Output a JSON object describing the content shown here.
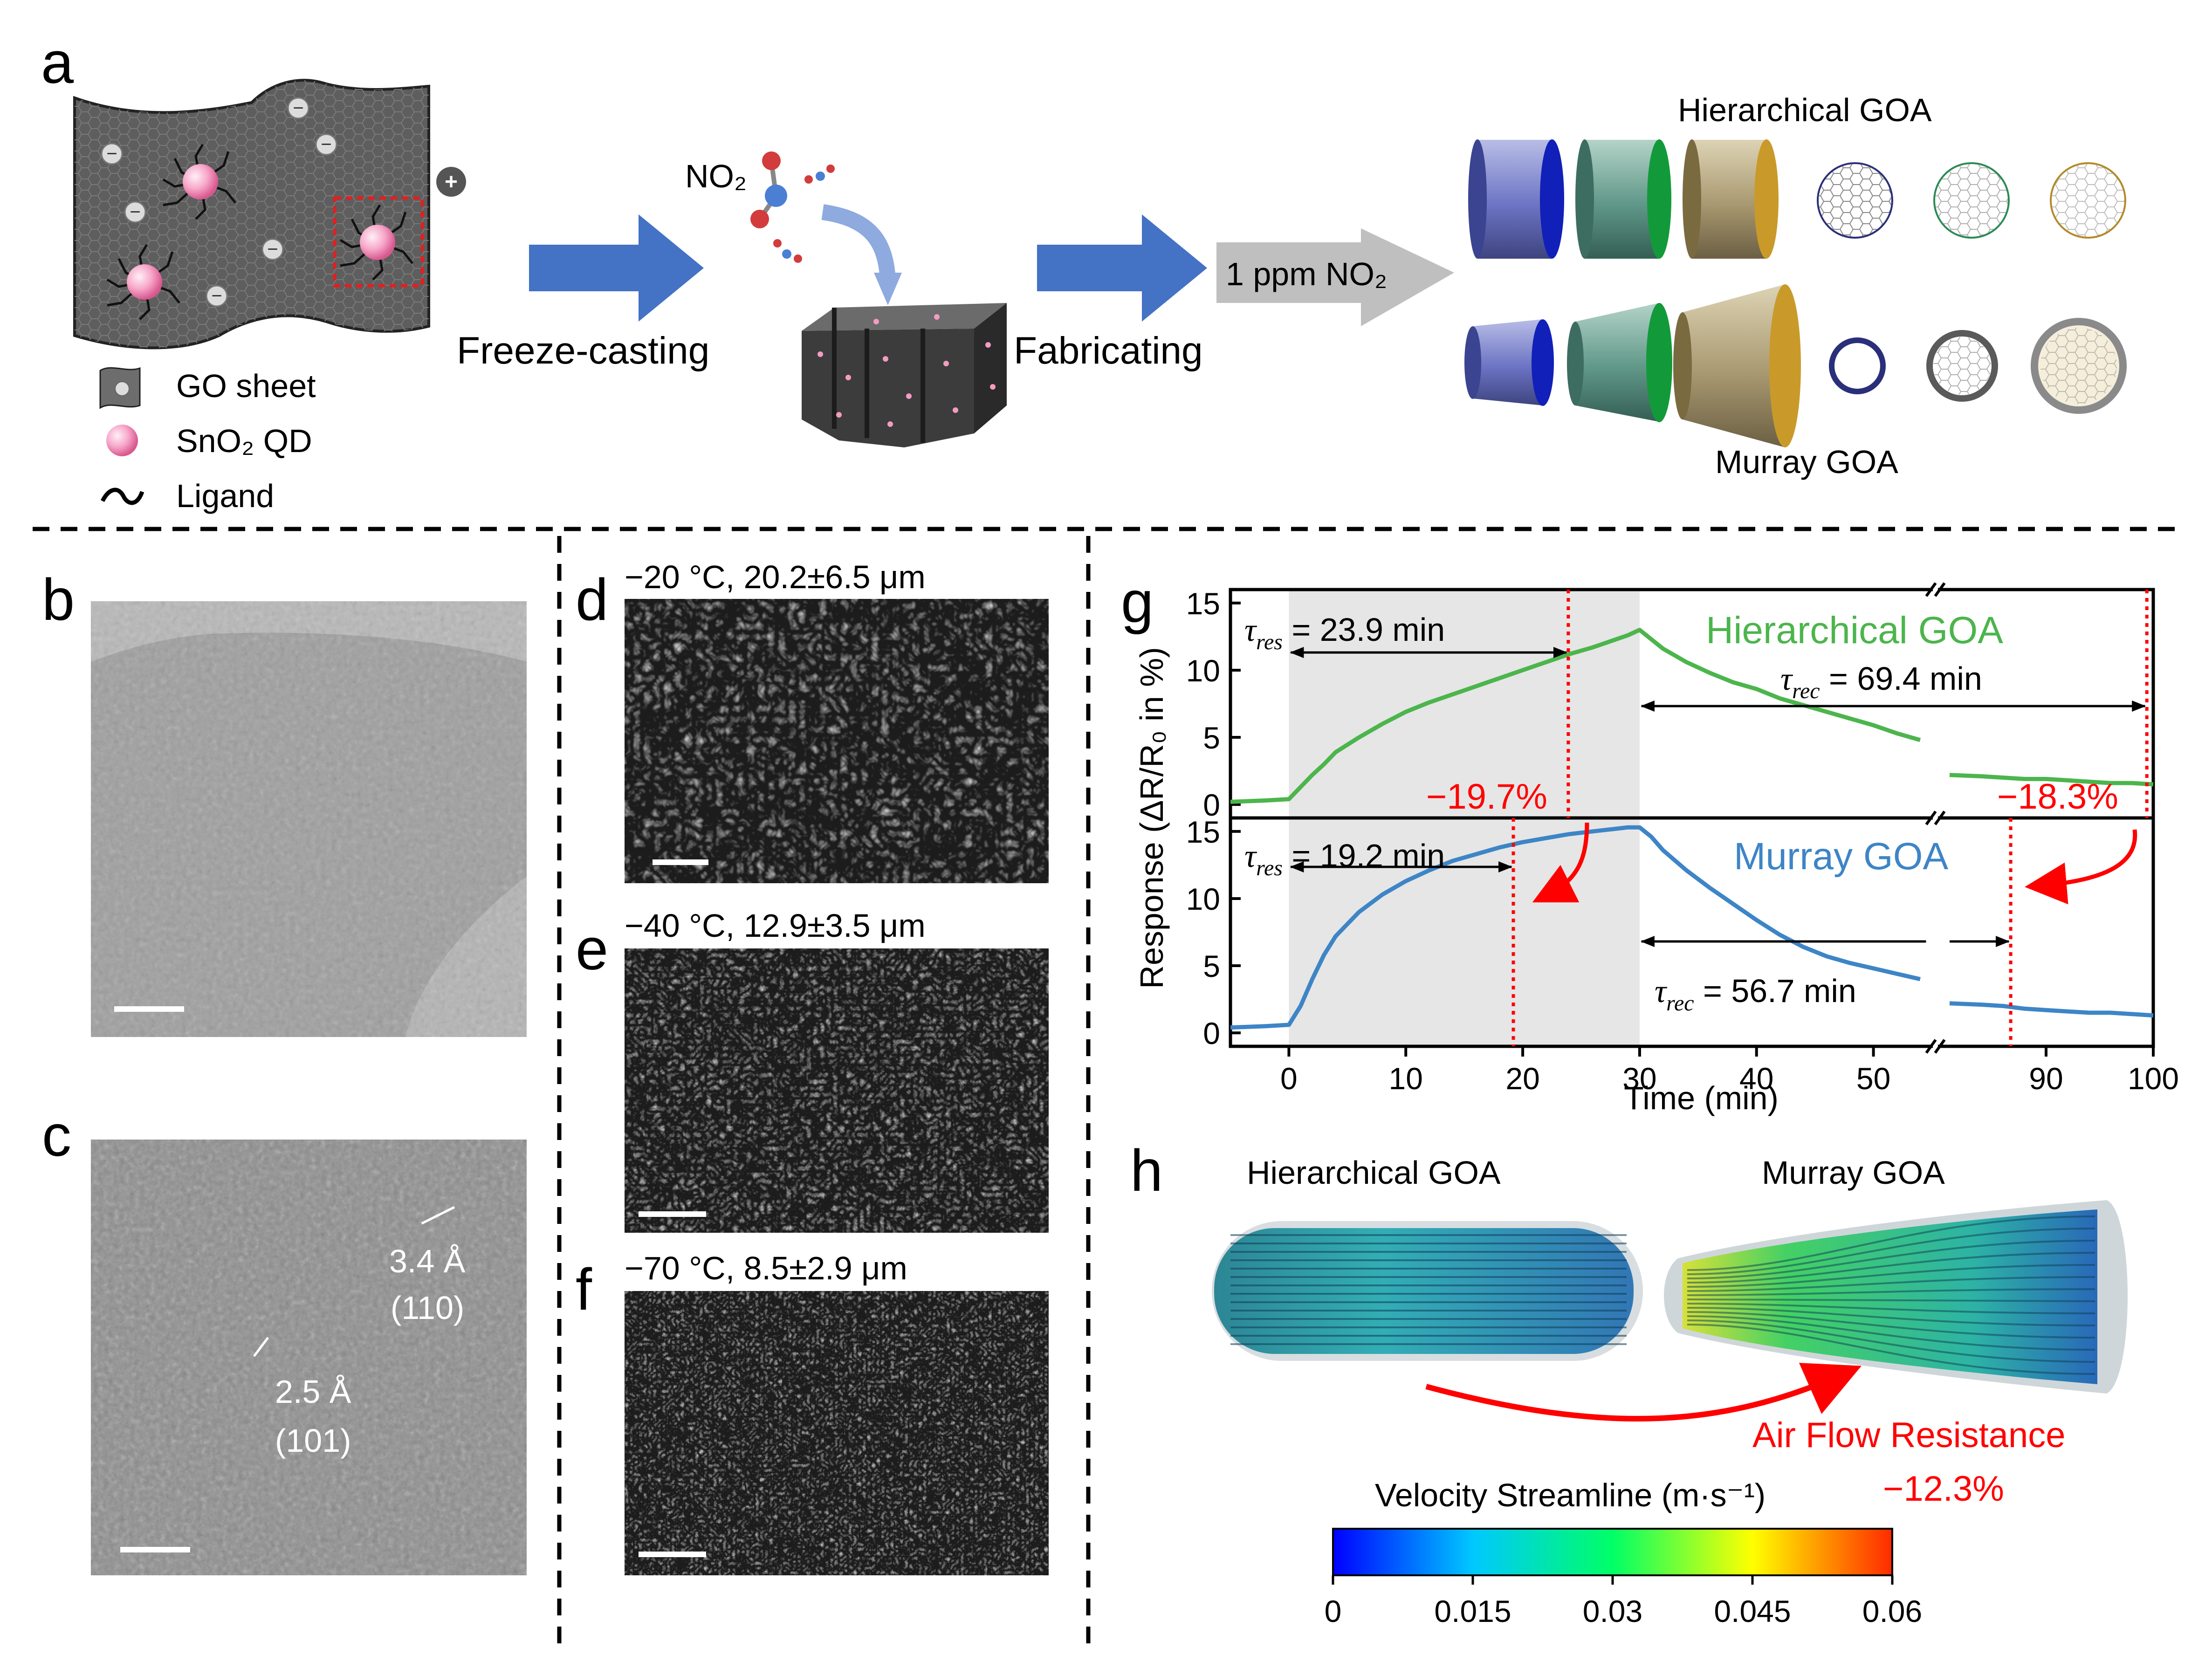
{
  "colors": {
    "hierarchical": "#4cb54c",
    "murray": "#3d85c6",
    "annotation_red": "#ff0000",
    "arrow_blue": "#3d6ec4",
    "qd_pink": "#f5a6c8"
  },
  "panel_a": {
    "letter": "a",
    "legend": {
      "go_sheet": "GO sheet",
      "sno2_qd": "SnO₂ QD",
      "ligand": "Ligand"
    },
    "step1": "Freeze-casting",
    "step2": "Fabricating",
    "no2": "NO₂",
    "gas": "1 ppm NO₂",
    "hier_title": "Hierarchical GOA",
    "murray_title": "Murray GOA"
  },
  "panel_b": {
    "letter": "b"
  },
  "panel_c": {
    "letter": "c",
    "spacing1": "3.4 Å",
    "plane1": "(110)",
    "spacing2": "2.5 Å",
    "plane2": "(101)"
  },
  "panel_d": {
    "letter": "d",
    "caption": "−20 °C, 20.2±6.5 μm"
  },
  "panel_e": {
    "letter": "e",
    "caption": "−40 °C, 12.9±3.5 μm"
  },
  "panel_f": {
    "letter": "f",
    "caption": "−70 °C, 8.5±2.9 μm"
  },
  "panel_g": {
    "letter": "g",
    "hier_title": "Hierarchical GOA",
    "murray_title": "Murray GOA",
    "tau_res_hier": "= 23.9 min",
    "tau_rec_hier": "= 69.4 min",
    "tau_res_murray": "= 19.2 min",
    "tau_rec_murray": "= 56.7 min",
    "tau_res_sub": "res",
    "tau_rec_sub": "rec",
    "pct_hier_left": "−19.7%",
    "pct_hier_right": "−18.3%"
  },
  "panel_h": {
    "letter": "h",
    "hier_title": "Hierarchical GOA",
    "murray_title": "Murray GOA",
    "resistance": "Air Flow Resistance",
    "resistance_pct": "−12.3%",
    "colorbar_title": "Velocity Streamline (m·s⁻¹)",
    "colorbar_ticks": [
      "0",
      "0.015",
      "0.03",
      "0.045",
      "0.06"
    ]
  },
  "chart_data": {
    "type": "line",
    "xlabel": "Time (min)",
    "ylabel": "Response (ΔR/R₀ in %)",
    "x_ticks": [
      0,
      10,
      20,
      30,
      40,
      50,
      90,
      100
    ],
    "y_ticks": [
      0,
      5,
      10,
      15
    ],
    "xlim": [
      -5,
      100
    ],
    "axis_break": [
      55,
      80
    ],
    "ylim": [
      -1,
      16
    ],
    "shaded_region": [
      0,
      30
    ],
    "grid": false,
    "panels": [
      {
        "name": "Hierarchical GOA",
        "color": "#4cb54c",
        "tau_res_min": 23.9,
        "tau_rec_min": 69.4,
        "x": [
          -5,
          -2,
          0,
          1,
          2,
          3,
          4,
          6,
          8,
          10,
          12,
          15,
          18,
          20,
          22,
          24,
          26,
          28,
          29,
          30,
          31,
          32,
          34,
          36,
          38,
          40,
          42,
          44,
          46,
          48,
          50,
          52,
          54,
          81,
          84,
          86,
          88,
          90,
          92,
          94,
          96,
          98,
          100
        ],
        "y": [
          0.2,
          0.3,
          0.4,
          1.3,
          2.2,
          3.0,
          3.9,
          5.0,
          6.0,
          6.9,
          7.6,
          8.5,
          9.4,
          10.0,
          10.6,
          11.2,
          11.7,
          12.3,
          12.6,
          13.0,
          12.3,
          11.6,
          10.6,
          9.8,
          9.1,
          8.6,
          7.9,
          7.4,
          6.9,
          6.4,
          5.9,
          5.3,
          4.8,
          2.2,
          2.1,
          2.0,
          1.9,
          1.9,
          1.8,
          1.7,
          1.6,
          1.6,
          1.5
        ]
      },
      {
        "name": "Murray GOA",
        "color": "#3d85c6",
        "tau_res_min": 19.2,
        "tau_rec_min": 56.7,
        "x": [
          -5,
          -2,
          0,
          1,
          2,
          3,
          4,
          6,
          8,
          10,
          12,
          14,
          16,
          18,
          20,
          22,
          24,
          26,
          28,
          29,
          30,
          31,
          32,
          34,
          36,
          38,
          40,
          42,
          44,
          46,
          48,
          50,
          52,
          54,
          81,
          84,
          86,
          88,
          90,
          92,
          94,
          96,
          98,
          100
        ],
        "y": [
          0.4,
          0.5,
          0.6,
          2.0,
          4.0,
          5.8,
          7.2,
          9.0,
          10.3,
          11.3,
          12.1,
          12.8,
          13.3,
          13.8,
          14.2,
          14.5,
          14.8,
          15.0,
          15.2,
          15.3,
          15.3,
          14.6,
          13.6,
          12.1,
          10.8,
          9.6,
          8.4,
          7.3,
          6.4,
          5.7,
          5.2,
          4.8,
          4.4,
          4.0,
          2.2,
          2.1,
          2.0,
          1.8,
          1.7,
          1.6,
          1.5,
          1.5,
          1.4,
          1.3
        ]
      }
    ]
  }
}
